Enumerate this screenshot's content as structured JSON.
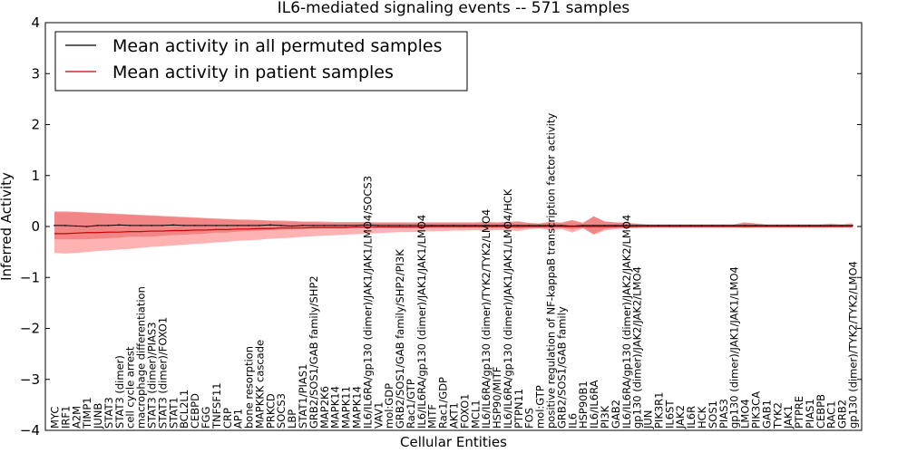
{
  "chart_data": {
    "type": "line",
    "title": "IL6-mediated signaling events -- 571 samples",
    "xlabel": "Cellular Entities",
    "ylabel": "Inferred Activity",
    "ylim": [
      -4,
      4
    ],
    "yticks": [
      -4,
      -3,
      -2,
      -1,
      0,
      1,
      2,
      3,
      4
    ],
    "legend_position": "top-left",
    "categories": [
      "MYC",
      "IRF1",
      "A2M",
      "TIMP1",
      "JUNB",
      "STAT3",
      "STAT3 (dimer)",
      "cell cycle arrest",
      "macrophage differentiation",
      "STAT3 (dimer)/PIAS3",
      "STAT3 (dimer)/FOXO1",
      "STAT1",
      "BCL2L1",
      "CEBPD",
      "FGG",
      "TNFSF11",
      "CRP",
      "AP1",
      "bone resorption",
      "MAPKKK cascade",
      "PRKCD",
      "SOCS3",
      "LBP",
      "STAT1/PIAS1",
      "GRB2/SOS1/GAB family/SHP2",
      "MAP2K6",
      "MAPK14",
      "MAPK11",
      "MAPK14",
      "IL6/IL6RA/gp130 (dimer)/JAK1/JAK1/LMO4/SOCS3",
      "VAV1",
      "mol:GDP",
      "GRB2/SOS1/GAB family/SHP2/PI3K",
      "Rac1/GTP",
      "IL6/IL6RA/gp130 (dimer)/JAK1/JAK1/LMO4",
      "MITF",
      "Rac1/GDP",
      "AKT1",
      "FOXO1",
      "MCL1",
      "IL6/IL6RA/gp130 (dimer)/TYK2/TYK2/LMO4",
      "HSP90/MITF",
      "IL6/IL6RA/gp130 (dimer)/JAK1/JAK1/LMO4/HCK",
      "PTPN11",
      "FOS",
      "mol:GTP",
      "positive regulation of NF-kappaB transcription factor activity",
      "GRB2/SOS1/GAB family",
      "IL6",
      "HSP90B1",
      "IL6/IL6RA",
      "PI3K",
      "GAB2",
      "IL6/IL6RA/gp130 (dimer)/JAK2/JAK2/LMO4",
      "gp130 (dimer)/JAK2/JAK2/LMO4",
      "JUN",
      "PIK3R1",
      "IL6ST",
      "JAK2",
      "IL6R",
      "HCK",
      "SOS1",
      "PIAS3",
      "gp130 (dimer)/JAK1/JAK1/LMO4",
      "LMO4",
      "PIK3CA",
      "GAB1",
      "TYK2",
      "JAK1",
      "PTPRE",
      "PIAS1",
      "CEBPB",
      "RAC1",
      "GRB2",
      "gp130 (dimer)/TYK2/TYK2/LMO4"
    ],
    "series": [
      {
        "name": "Mean activity in all permuted samples",
        "color": "#000000",
        "values": [
          0.02,
          0.02,
          0.01,
          0.0,
          0.02,
          0.02,
          0.03,
          0.02,
          0.02,
          0.02,
          0.02,
          0.03,
          0.02,
          0.02,
          0.02,
          0.02,
          0.02,
          0.02,
          0.02,
          0.02,
          0.03,
          0.02,
          0.01,
          0.02,
          0.02,
          0.02,
          0.02,
          0.02,
          0.02,
          0.03,
          0.02,
          0.02,
          0.02,
          0.02,
          0.02,
          0.02,
          0.02,
          0.02,
          0.02,
          0.02,
          0.02,
          0.02,
          0.02,
          0.02,
          0.02,
          0.02,
          0.02,
          0.02,
          0.01,
          0.02,
          0.02,
          0.02,
          0.02,
          0.02,
          0.02,
          0.02,
          0.02,
          0.02,
          0.02,
          0.02,
          0.02,
          0.02,
          0.02,
          0.02,
          0.02,
          0.02,
          0.02,
          0.02,
          0.02,
          0.02,
          0.02,
          0.02,
          0.02,
          0.02,
          0.02
        ],
        "lower": [
          -0.25,
          -0.25,
          -0.25,
          -0.25,
          -0.24,
          -0.23,
          -0.22,
          -0.2,
          -0.2,
          -0.2,
          -0.18,
          -0.17,
          -0.16,
          -0.15,
          -0.14,
          -0.12,
          -0.12,
          -0.1,
          -0.09,
          -0.08,
          -0.07,
          -0.06,
          -0.05,
          -0.04,
          -0.04,
          -0.03,
          -0.03,
          -0.03,
          -0.02,
          -0.02,
          -0.02,
          -0.02,
          -0.02,
          -0.02,
          -0.02,
          -0.02,
          -0.02,
          -0.02,
          -0.02,
          -0.02,
          -0.02,
          -0.02,
          -0.02,
          -0.04,
          -0.02,
          -0.02,
          -0.02,
          -0.02,
          -0.06,
          -0.02,
          -0.15,
          -0.05,
          -0.02,
          -0.01,
          -0.01,
          0.0,
          0.0,
          0.0,
          0.0,
          0.0,
          0.0,
          0.0,
          0.0,
          0.0,
          0.0,
          0.0,
          0.0,
          0.0,
          0.0,
          0.0,
          0.0,
          0.0,
          0.0,
          0.0,
          0.0
        ],
        "upper": [
          0.28,
          0.28,
          0.28,
          0.27,
          0.26,
          0.25,
          0.24,
          0.23,
          0.22,
          0.21,
          0.2,
          0.19,
          0.18,
          0.17,
          0.16,
          0.15,
          0.14,
          0.13,
          0.12,
          0.12,
          0.11,
          0.1,
          0.1,
          0.09,
          0.09,
          0.08,
          0.08,
          0.08,
          0.08,
          0.08,
          0.08,
          0.08,
          0.08,
          0.08,
          0.08,
          0.08,
          0.08,
          0.08,
          0.08,
          0.08,
          0.09,
          0.08,
          0.09,
          0.1,
          0.07,
          0.06,
          0.08,
          0.08,
          0.12,
          0.08,
          0.2,
          0.1,
          0.08,
          0.08,
          0.06,
          0.04,
          0.04,
          0.04,
          0.04,
          0.04,
          0.04,
          0.04,
          0.04,
          0.04,
          0.08,
          0.06,
          0.04,
          0.04,
          0.04,
          0.04,
          0.04,
          0.04,
          0.04,
          0.04,
          0.04
        ]
      },
      {
        "name": "Mean activity in patient samples",
        "color": "#cc0000",
        "values": [
          -0.14,
          -0.14,
          -0.13,
          -0.12,
          -0.12,
          -0.11,
          -0.11,
          -0.1,
          -0.1,
          -0.09,
          -0.09,
          -0.08,
          -0.08,
          -0.07,
          -0.07,
          -0.06,
          -0.06,
          -0.05,
          -0.05,
          -0.04,
          -0.04,
          -0.03,
          -0.03,
          -0.03,
          -0.02,
          -0.02,
          -0.02,
          -0.02,
          -0.01,
          -0.01,
          -0.01,
          -0.01,
          -0.01,
          -0.01,
          -0.01,
          0.0,
          0.0,
          0.0,
          0.0,
          0.0,
          0.0,
          0.0,
          0.0,
          0.0,
          0.0,
          0.0,
          0.0,
          0.0,
          0.0,
          0.0,
          0.0,
          0.0,
          0.0,
          0.0,
          0.0,
          0.0,
          0.0,
          0.0,
          0.0,
          0.0,
          0.0,
          0.0,
          0.0,
          0.0,
          0.0,
          0.0,
          0.0,
          0.0,
          0.0,
          0.0,
          0.0,
          0.0,
          0.0,
          0.0,
          0.0
        ],
        "lower": [
          -0.52,
          -0.53,
          -0.52,
          -0.5,
          -0.48,
          -0.47,
          -0.45,
          -0.44,
          -0.42,
          -0.4,
          -0.39,
          -0.37,
          -0.36,
          -0.34,
          -0.33,
          -0.31,
          -0.3,
          -0.28,
          -0.27,
          -0.26,
          -0.24,
          -0.23,
          -0.22,
          -0.2,
          -0.19,
          -0.18,
          -0.17,
          -0.16,
          -0.15,
          -0.14,
          -0.13,
          -0.12,
          -0.11,
          -0.11,
          -0.1,
          -0.09,
          -0.09,
          -0.08,
          -0.08,
          -0.07,
          -0.08,
          -0.07,
          -0.07,
          -0.09,
          -0.05,
          -0.04,
          -0.08,
          -0.05,
          -0.12,
          -0.04,
          -0.16,
          -0.08,
          -0.05,
          -0.04,
          -0.03,
          -0.02,
          -0.02,
          -0.02,
          -0.02,
          -0.02,
          -0.02,
          -0.02,
          -0.02,
          -0.02,
          -0.03,
          -0.02,
          -0.02,
          -0.02,
          -0.02,
          -0.02,
          -0.02,
          -0.02,
          -0.02,
          -0.02,
          -0.02
        ],
        "upper": [
          0.3,
          0.3,
          0.29,
          0.28,
          0.27,
          0.26,
          0.25,
          0.24,
          0.23,
          0.22,
          0.21,
          0.2,
          0.19,
          0.18,
          0.17,
          0.16,
          0.15,
          0.14,
          0.14,
          0.13,
          0.12,
          0.12,
          0.11,
          0.1,
          0.1,
          0.1,
          0.09,
          0.09,
          0.09,
          0.09,
          0.08,
          0.08,
          0.08,
          0.08,
          0.08,
          0.08,
          0.08,
          0.08,
          0.08,
          0.08,
          0.09,
          0.08,
          0.09,
          0.1,
          0.07,
          0.06,
          0.1,
          0.07,
          0.13,
          0.06,
          0.2,
          0.1,
          0.08,
          0.07,
          0.05,
          0.04,
          0.04,
          0.04,
          0.04,
          0.04,
          0.04,
          0.04,
          0.04,
          0.04,
          0.08,
          0.06,
          0.04,
          0.04,
          0.04,
          0.04,
          0.04,
          0.04,
          0.06,
          0.04,
          0.07
        ]
      }
    ]
  }
}
